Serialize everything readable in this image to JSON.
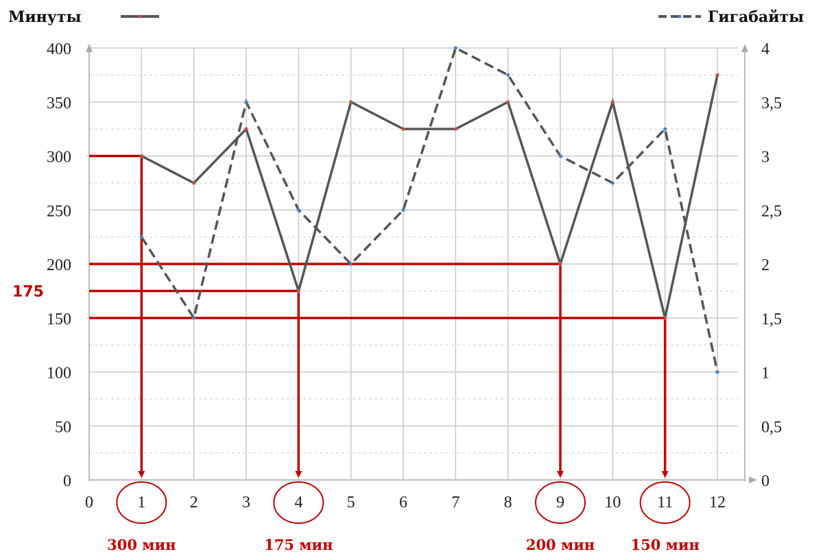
{
  "chart_data": {
    "type": "line",
    "x": [
      1,
      2,
      3,
      4,
      5,
      6,
      7,
      8,
      9,
      10,
      11,
      12
    ],
    "x_ticks": [
      "0",
      "1",
      "2",
      "3",
      "4",
      "5",
      "6",
      "7",
      "8",
      "9",
      "10",
      "11",
      "12"
    ],
    "xlim": [
      0,
      12
    ],
    "y_left": {
      "lim": [
        0,
        400
      ],
      "ticks": [
        "0",
        "50",
        "100",
        "150",
        "200",
        "250",
        "300",
        "350",
        "400"
      ]
    },
    "y_right": {
      "lim": [
        0,
        4
      ],
      "ticks": [
        "0",
        "0,5",
        "1",
        "1,5",
        "2",
        "2,5",
        "3",
        "3,5",
        "4"
      ]
    },
    "series": [
      {
        "name": "Минуты",
        "axis": "left",
        "style": "solid",
        "values": [
          300,
          275,
          325,
          175,
          350,
          325,
          325,
          350,
          200,
          350,
          150,
          375
        ]
      },
      {
        "name": "Гигабайты",
        "axis": "right",
        "style": "dashed",
        "values": [
          2.25,
          1.5,
          3.5,
          2.5,
          2.0,
          2.5,
          4.0,
          3.75,
          3.0,
          2.75,
          3.25,
          1.0
        ]
      }
    ],
    "grid": true,
    "legend": "top",
    "annotations": {
      "highlight_color": "#c00000",
      "y_label_175": "175",
      "points": [
        {
          "x": 1,
          "y": 300,
          "label": "300 мин"
        },
        {
          "x": 4,
          "y": 175,
          "label": "175 мин"
        },
        {
          "x": 9,
          "y": 200,
          "label": "200 мин"
        },
        {
          "x": 11,
          "y": 150,
          "label": "150 мин"
        }
      ]
    }
  }
}
